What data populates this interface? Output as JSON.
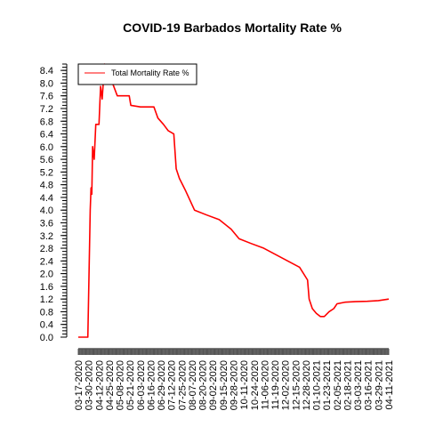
{
  "chart_data": {
    "type": "line",
    "title": "COVID-19 Barbados Mortality Rate %",
    "xlabel": "",
    "ylabel": "",
    "ylim": [
      0,
      8.6
    ],
    "y_ticks": [
      "0.0",
      "0.4",
      "0.8",
      "1.2",
      "1.6",
      "2.0",
      "2.4",
      "2.8",
      "3.2",
      "3.6",
      "4.0",
      "4.4",
      "4.8",
      "5.2",
      "5.6",
      "6.0",
      "6.4",
      "6.8",
      "7.2",
      "7.6",
      "8.0",
      "8.4"
    ],
    "x_tick_labels": [
      "03-17-2020",
      "03-30-2020",
      "04-12-2020",
      "04-25-2020",
      "05-08-2020",
      "05-21-2020",
      "06-03-2020",
      "06-16-2020",
      "06-29-2020",
      "07-12-2020",
      "07-25-2020",
      "08-07-2020",
      "08-20-2020",
      "09-02-2020",
      "09-15-2020",
      "09-28-2020",
      "10-11-2020",
      "10-24-2020",
      "11-06-2020",
      "11-19-2020",
      "12-02-2020",
      "12-15-2020",
      "12-28-2020",
      "01-10-2021",
      "01-23-2021",
      "02-05-2021",
      "02-18-2021",
      "03-03-2021",
      "03-16-2021",
      "03-29-2021",
      "04-11-2021"
    ],
    "legend": {
      "position": "top-left",
      "entries": [
        "Total Mortality Rate %"
      ]
    },
    "grid": false,
    "series": [
      {
        "name": "Total Mortality Rate %",
        "color": "#ff0000",
        "points": [
          [
            "03-17-2020",
            0.0
          ],
          [
            "03-29-2020",
            0.0
          ],
          [
            "04-01-2020",
            4.0
          ],
          [
            "04-02-2020",
            4.7
          ],
          [
            "04-03-2020",
            4.5
          ],
          [
            "04-04-2020",
            6.0
          ],
          [
            "04-06-2020",
            5.6
          ],
          [
            "04-08-2020",
            6.7
          ],
          [
            "04-12-2020",
            6.7
          ],
          [
            "04-14-2020",
            7.9
          ],
          [
            "04-16-2020",
            7.5
          ],
          [
            "04-19-2020",
            8.6
          ],
          [
            "04-22-2020",
            8.5
          ],
          [
            "04-25-2020",
            8.5
          ],
          [
            "04-29-2020",
            8.0
          ],
          [
            "05-05-2020",
            7.6
          ],
          [
            "05-20-2020",
            7.6
          ],
          [
            "05-22-2020",
            7.3
          ],
          [
            "06-03-2020",
            7.25
          ],
          [
            "06-20-2020",
            7.25
          ],
          [
            "06-25-2020",
            6.9
          ],
          [
            "07-02-2020",
            6.7
          ],
          [
            "07-08-2020",
            6.5
          ],
          [
            "07-15-2020",
            6.4
          ],
          [
            "07-18-2020",
            5.3
          ],
          [
            "07-22-2020",
            5.0
          ],
          [
            "07-30-2020",
            4.6
          ],
          [
            "08-10-2020",
            4.0
          ],
          [
            "08-25-2020",
            3.85
          ],
          [
            "09-10-2020",
            3.7
          ],
          [
            "09-25-2020",
            3.4
          ],
          [
            "10-05-2020",
            3.1
          ],
          [
            "10-20-2020",
            2.95
          ],
          [
            "11-05-2020",
            2.8
          ],
          [
            "11-20-2020",
            2.6
          ],
          [
            "12-05-2020",
            2.4
          ],
          [
            "12-20-2020",
            2.2
          ],
          [
            "12-30-2020",
            1.8
          ],
          [
            "01-01-2021",
            1.2
          ],
          [
            "01-05-2021",
            0.9
          ],
          [
            "01-10-2021",
            0.75
          ],
          [
            "01-15-2021",
            0.65
          ],
          [
            "01-20-2021",
            0.65
          ],
          [
            "01-22-2021",
            0.7
          ],
          [
            "01-26-2021",
            0.8
          ],
          [
            "02-01-2021",
            0.9
          ],
          [
            "02-05-2021",
            1.05
          ],
          [
            "02-15-2021",
            1.1
          ],
          [
            "02-28-2021",
            1.12
          ],
          [
            "03-15-2021",
            1.13
          ],
          [
            "03-29-2021",
            1.15
          ],
          [
            "04-11-2021",
            1.2
          ]
        ]
      }
    ]
  }
}
